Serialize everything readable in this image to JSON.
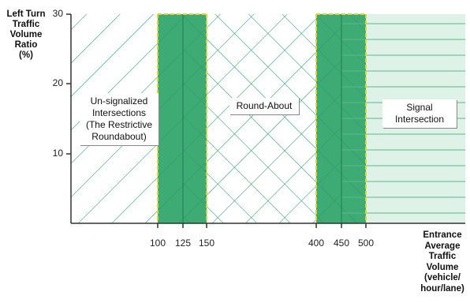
{
  "y_axis": {
    "title_lines": [
      "Left Turn",
      "Traffic",
      "Volume",
      "Ratio",
      "(%)"
    ],
    "ticks": [
      "30",
      "20",
      "10"
    ]
  },
  "x_axis": {
    "title_lines": [
      "Entrance",
      "Average",
      "Traffic",
      "Volume",
      "(vehicle/",
      "hour/lane)"
    ],
    "ticks": [
      "100",
      "125",
      "150",
      "400",
      "450",
      "500"
    ]
  },
  "regions": {
    "unsignalized": [
      "Un-signalized",
      "Intersections",
      "(The Restrictive",
      "Roundabout)"
    ],
    "roundabout": [
      "Round-About"
    ],
    "signal": [
      "Signal",
      "Intersection"
    ]
  },
  "colors": {
    "hatch_stroke": "#2a9a66",
    "transition_fill": "#3eab74",
    "signal_fill": "#dff2e7",
    "boundary_dash": "#e2d42a",
    "axis": "#333333"
  }
}
